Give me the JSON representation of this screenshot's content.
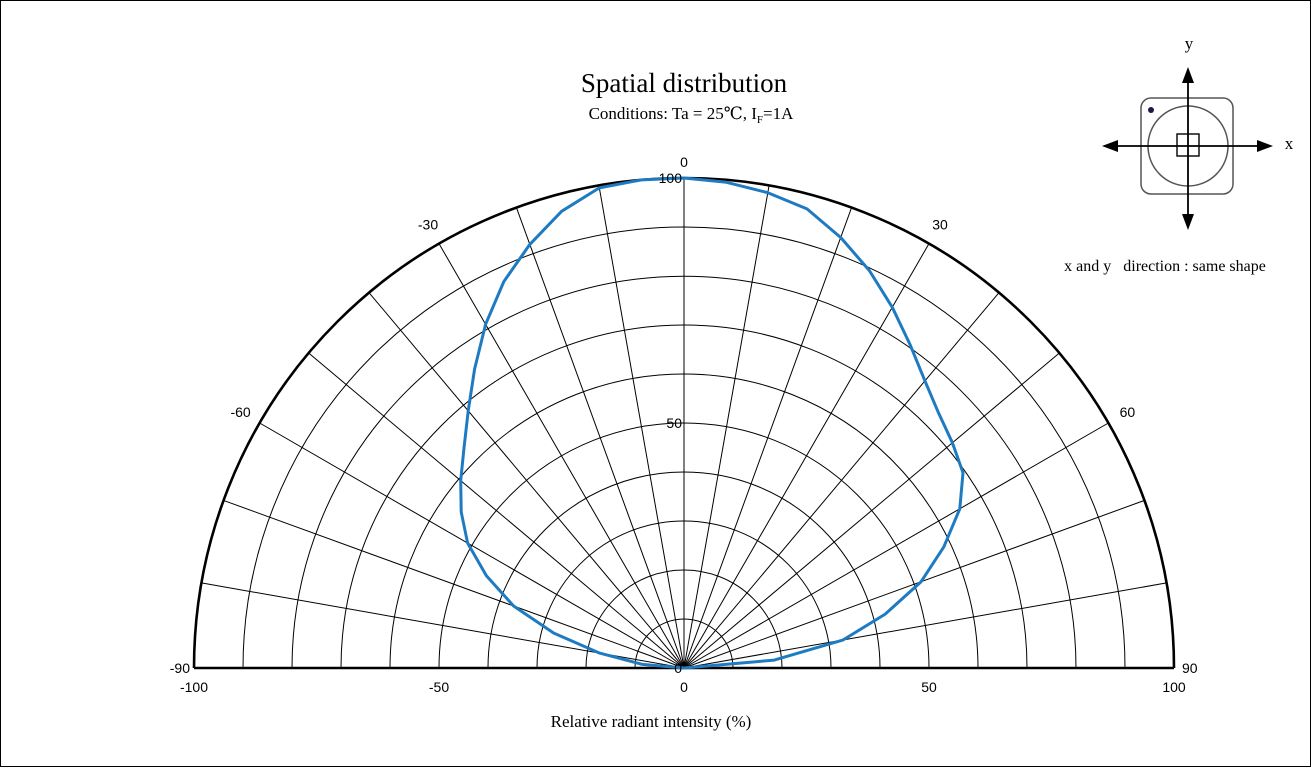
{
  "chart_data": {
    "type": "polar",
    "title": "Spatial distribution",
    "subtitle": {
      "prefix": "Conditions: Ta = 25℃, I",
      "subscript": "F",
      "suffix": "=1A"
    },
    "xlabel": "Relative radiant intensity (%)",
    "x_ticks": [
      "-100",
      "-50",
      "0",
      "50",
      "100"
    ],
    "radial_labels": [
      "0",
      "50",
      "100"
    ],
    "angle_labels": [
      "-90",
      "-60",
      "-30",
      "0",
      "30",
      "60",
      "90"
    ],
    "angle_range": [
      -90,
      90
    ],
    "radial_range": [
      0,
      100
    ],
    "grid": true,
    "series": [
      {
        "color": "#1f7bc1",
        "angles": [
          -90,
          -85,
          -80,
          -75,
          -70,
          -65,
          -60,
          -55,
          -50,
          -45,
          -40,
          -35,
          -30,
          -25,
          -20,
          -15,
          -10,
          -5,
          0,
          5,
          10,
          15,
          20,
          25,
          30,
          35,
          40,
          45,
          50,
          55,
          60,
          65,
          70,
          75,
          80,
          85,
          90
        ],
        "values": [
          0,
          8.5,
          17.5,
          27.5,
          37,
          44.5,
          51,
          55.5,
          59.5,
          63.5,
          68.5,
          74.5,
          81,
          87,
          92,
          96.5,
          99.5,
          100,
          100,
          99.5,
          98.5,
          97,
          93.5,
          89.5,
          85,
          80.5,
          76.5,
          73.5,
          71.5,
          69.5,
          65,
          58.5,
          51.5,
          42.5,
          33,
          18.5,
          0
        ]
      }
    ]
  },
  "inset": {
    "x_label": "x",
    "y_label": "y",
    "note": "x and y   direction : same shape"
  },
  "colors": {
    "curve": "#1f7bc1",
    "grid": "#000000",
    "background": "#ffffff"
  }
}
